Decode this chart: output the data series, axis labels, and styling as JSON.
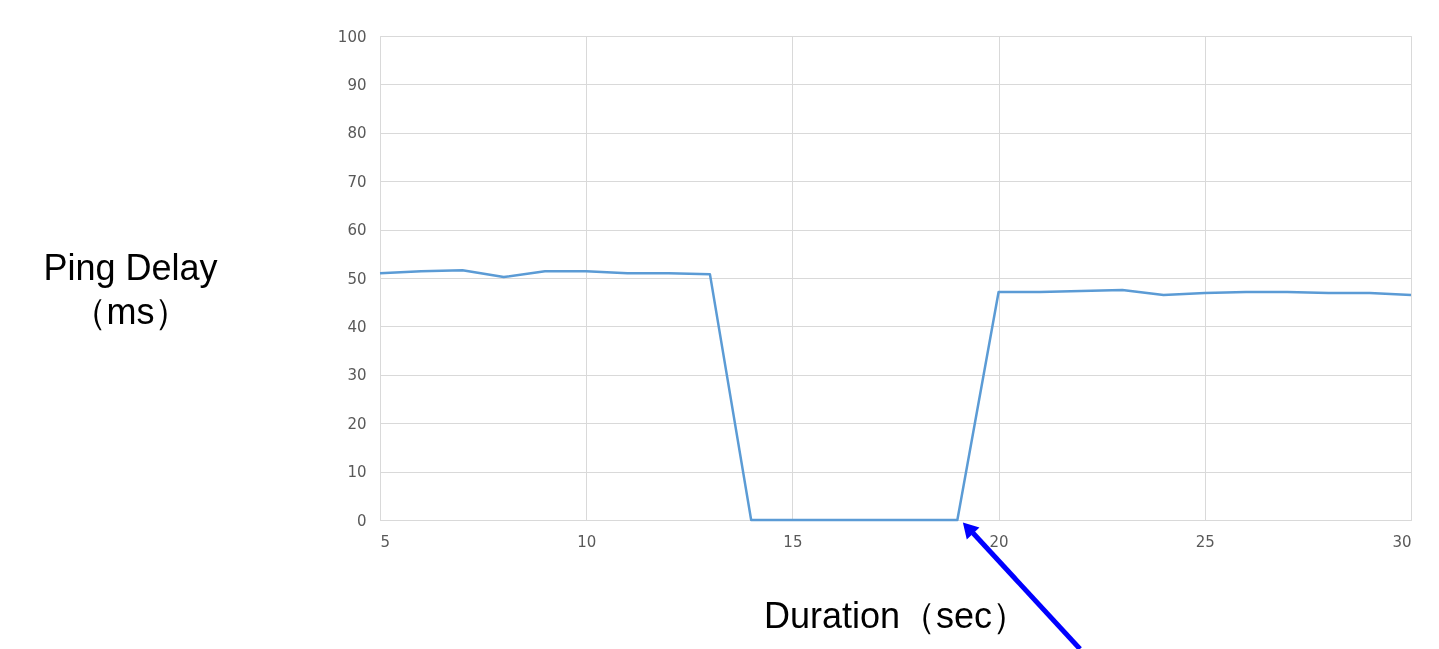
{
  "chart_data": {
    "type": "line",
    "xlabel": "Duration（sec）",
    "ylabel": "Ping Delay\n（ms）",
    "x": [
      5,
      6,
      7,
      8,
      9,
      10,
      11,
      12,
      13,
      14,
      15,
      16,
      17,
      18,
      19,
      20,
      21,
      22,
      23,
      24,
      25,
      26,
      27,
      28,
      29,
      30
    ],
    "series": [
      {
        "color": "#5b9bd5",
        "values": [
          51,
          51.4,
          51.6,
          50.2,
          51.4,
          51.4,
          51,
          51,
          50.8,
          0,
          0,
          0,
          0,
          0,
          0,
          47.1,
          47.1,
          47.3,
          47.5,
          46.5,
          46.9,
          47.1,
          47.1,
          46.9,
          46.9,
          46.5
        ]
      }
    ],
    "xlim": [
      5,
      30
    ],
    "xticks": [
      5,
      10,
      15,
      20,
      25,
      30
    ],
    "ylim": [
      0,
      100
    ],
    "yticks": [
      0,
      10,
      20,
      30,
      40,
      50,
      60,
      70,
      80,
      90,
      100
    ],
    "grid": true,
    "marker": "none",
    "line_style": "solid"
  }
}
